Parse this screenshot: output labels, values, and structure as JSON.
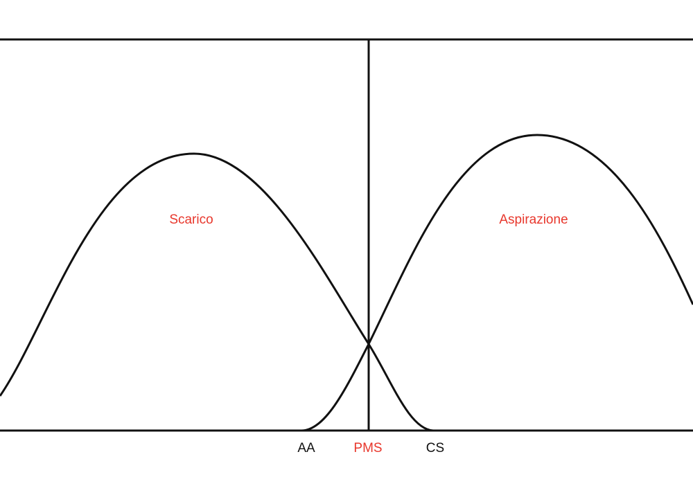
{
  "curve_labels": [
    "Scarico",
    "Aspirazione"
  ],
  "axis_labels": [
    "AA",
    "PMS",
    "CS"
  ]
}
